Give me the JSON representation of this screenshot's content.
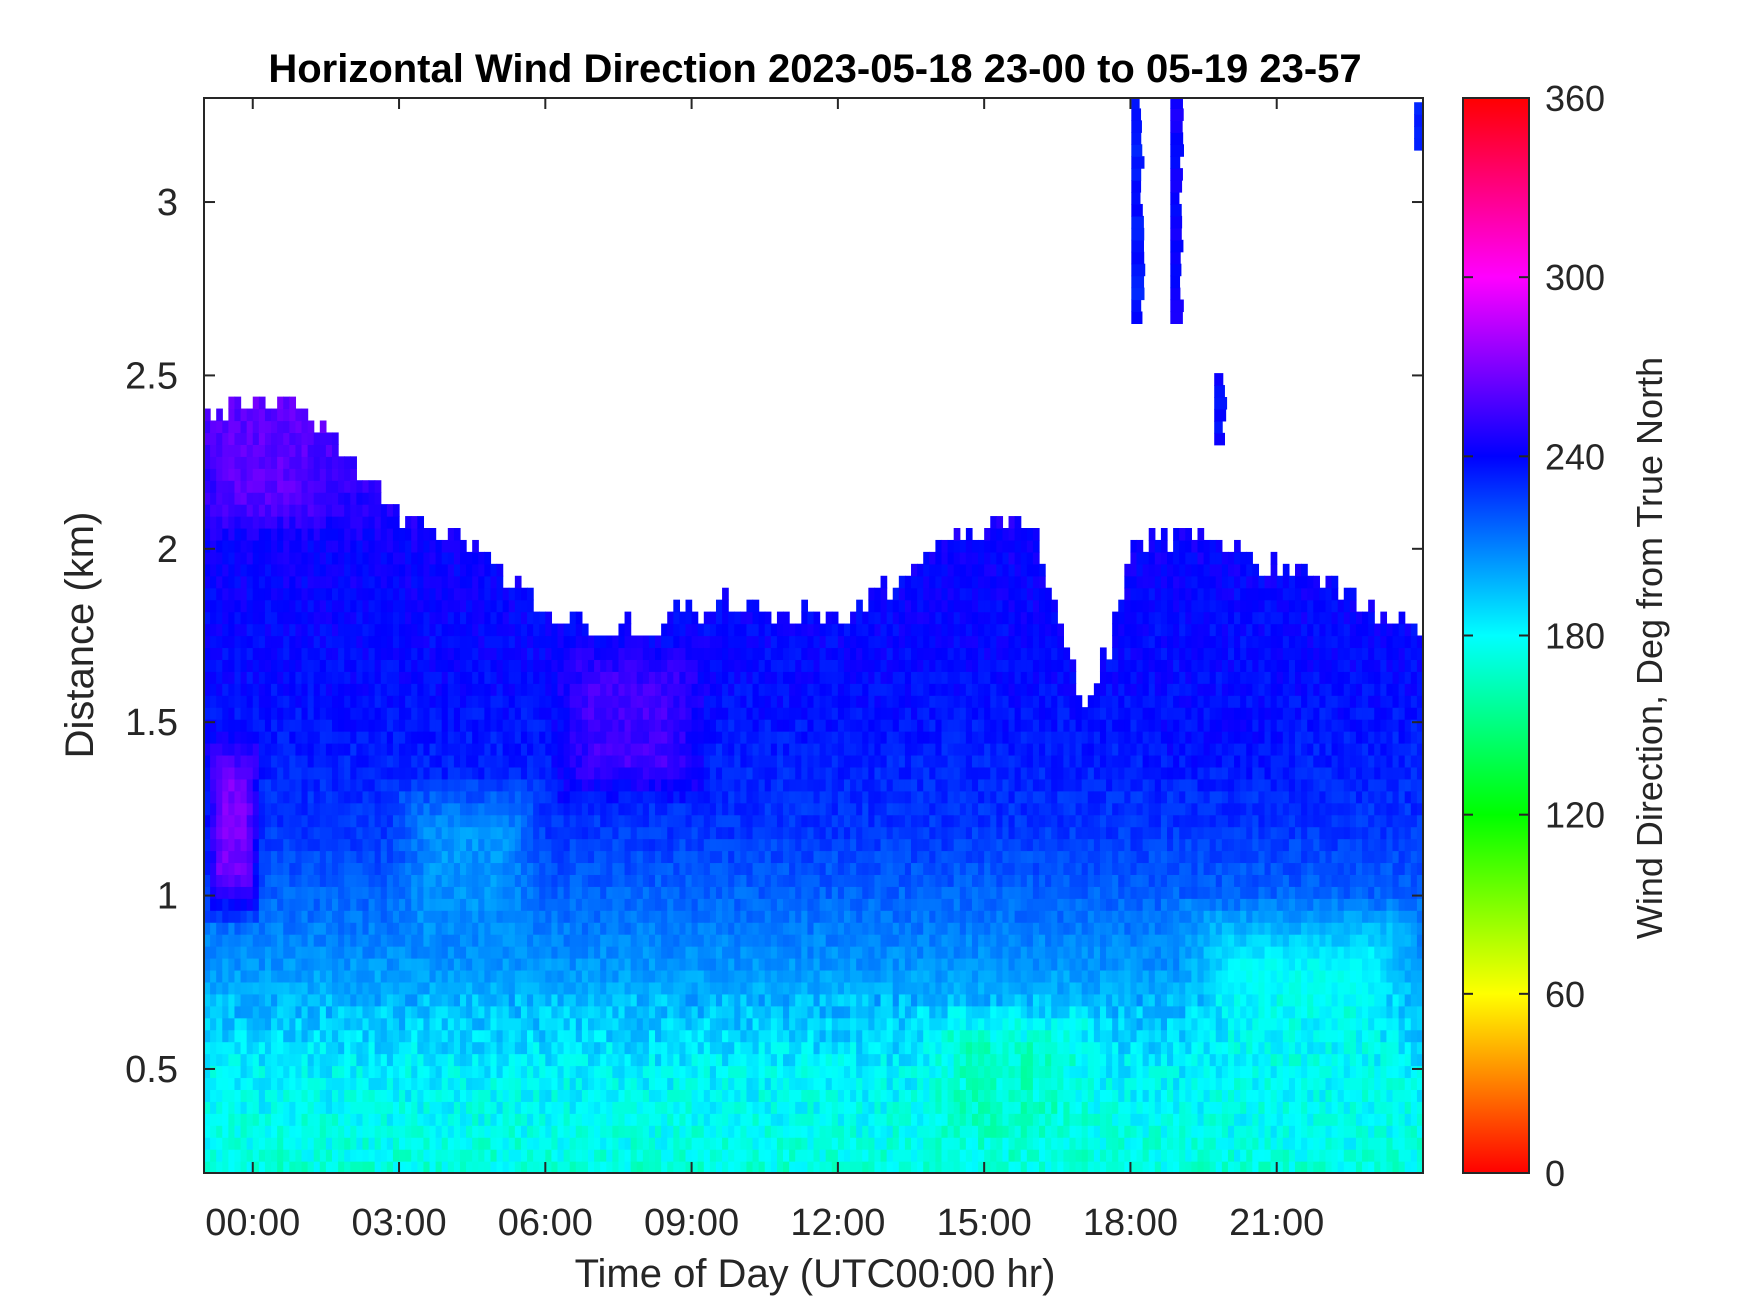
{
  "chart_data": {
    "type": "heatmap",
    "title": "Horizontal Wind Direction 2023-05-18 23-00 to 05-19 23-57",
    "xlabel": "Time of Day (UTC00:00 hr)",
    "ylabel": "Distance (km)",
    "colorbar_label": "Wind Direction, Deg from True North",
    "xlim_hours": [
      -1.0,
      24.0
    ],
    "ylim_km": [
      0.2,
      3.3
    ],
    "x_ticks": [
      {
        "value": 0,
        "label": "00:00"
      },
      {
        "value": 3,
        "label": "03:00"
      },
      {
        "value": 6,
        "label": "06:00"
      },
      {
        "value": 9,
        "label": "09:00"
      },
      {
        "value": 12,
        "label": "12:00"
      },
      {
        "value": 15,
        "label": "15:00"
      },
      {
        "value": 18,
        "label": "18:00"
      },
      {
        "value": 21,
        "label": "21:00"
      }
    ],
    "y_ticks": [
      {
        "value": 0.5,
        "label": "0.5"
      },
      {
        "value": 1.0,
        "label": "1"
      },
      {
        "value": 1.5,
        "label": "1.5"
      },
      {
        "value": 2.0,
        "label": "2"
      },
      {
        "value": 2.5,
        "label": "2.5"
      },
      {
        "value": 3.0,
        "label": "3"
      }
    ],
    "colorbar": {
      "range": [
        0,
        360
      ],
      "ticks": [
        {
          "value": 0,
          "label": "0"
        },
        {
          "value": 60,
          "label": "60"
        },
        {
          "value": 120,
          "label": "120"
        },
        {
          "value": 180,
          "label": "180"
        },
        {
          "value": 240,
          "label": "240"
        },
        {
          "value": 300,
          "label": "300"
        },
        {
          "value": 360,
          "label": "360"
        }
      ],
      "stops": [
        {
          "value": 0,
          "color": "#ff0000"
        },
        {
          "value": 60,
          "color": "#ffff00"
        },
        {
          "value": 120,
          "color": "#00ff00"
        },
        {
          "value": 180,
          "color": "#00ffff"
        },
        {
          "value": 240,
          "color": "#0000ff"
        },
        {
          "value": 300,
          "color": "#ff00ff"
        },
        {
          "value": 360,
          "color": "#ff0000"
        }
      ]
    },
    "profile_top_km": [
      [
        -1.0,
        2.4
      ],
      [
        0.0,
        2.42
      ],
      [
        1.0,
        2.4
      ],
      [
        2.0,
        2.25
      ],
      [
        3.0,
        2.1
      ],
      [
        4.0,
        2.05
      ],
      [
        5.0,
        1.95
      ],
      [
        6.0,
        1.82
      ],
      [
        7.0,
        1.76
      ],
      [
        8.0,
        1.78
      ],
      [
        9.0,
        1.82
      ],
      [
        10.0,
        1.85
      ],
      [
        11.0,
        1.83
      ],
      [
        12.0,
        1.8
      ],
      [
        13.0,
        1.9
      ],
      [
        14.0,
        2.0
      ],
      [
        15.0,
        2.08
      ],
      [
        16.0,
        2.05
      ],
      [
        16.5,
        1.85
      ],
      [
        17.0,
        1.55
      ],
      [
        17.5,
        1.7
      ],
      [
        18.0,
        2.0
      ],
      [
        19.0,
        2.05
      ],
      [
        20.0,
        2.02
      ],
      [
        21.0,
        1.95
      ],
      [
        22.0,
        1.92
      ],
      [
        23.0,
        1.8
      ],
      [
        24.0,
        1.75
      ]
    ],
    "direction_bands": [
      {
        "alt_km": 0.2,
        "deg": 172
      },
      {
        "alt_km": 0.5,
        "deg": 182
      },
      {
        "alt_km": 0.8,
        "deg": 205
      },
      {
        "alt_km": 1.2,
        "deg": 228
      },
      {
        "alt_km": 1.6,
        "deg": 238
      },
      {
        "alt_km": 2.0,
        "deg": 242
      },
      {
        "alt_km": 2.4,
        "deg": 262
      }
    ],
    "features": [
      {
        "x0": -1.0,
        "x1": 0.2,
        "y0": 0.9,
        "y1": 1.5,
        "deg": 268
      },
      {
        "x0": -1.0,
        "x1": 1.5,
        "y0": 2.05,
        "y1": 2.45,
        "deg": 262
      },
      {
        "x0": 6.0,
        "x1": 9.5,
        "y0": 1.25,
        "y1": 1.75,
        "deg": 255
      },
      {
        "x0": 2.8,
        "x1": 6.0,
        "y0": 0.8,
        "y1": 1.35,
        "deg": 205
      },
      {
        "x0": 18.0,
        "x1": 21.5,
        "y0": 1.3,
        "y1": 1.9,
        "deg": 238
      },
      {
        "x0": 19.0,
        "x1": 24.0,
        "y0": 0.2,
        "y1": 1.0,
        "deg": 178
      },
      {
        "x0": 13.5,
        "x1": 17.5,
        "y0": 0.2,
        "y1": 0.7,
        "deg": 168
      }
    ],
    "upper_plumes": [
      {
        "x": 18.1,
        "y0": 2.65,
        "y1": 3.3,
        "deg": 235
      },
      {
        "x": 18.9,
        "y0": 2.65,
        "y1": 3.3,
        "deg": 242
      },
      {
        "x": 19.8,
        "y0": 2.3,
        "y1": 2.5,
        "deg": 238
      },
      {
        "x": 23.9,
        "y0": 3.15,
        "y1": 3.28,
        "deg": 230
      }
    ]
  }
}
